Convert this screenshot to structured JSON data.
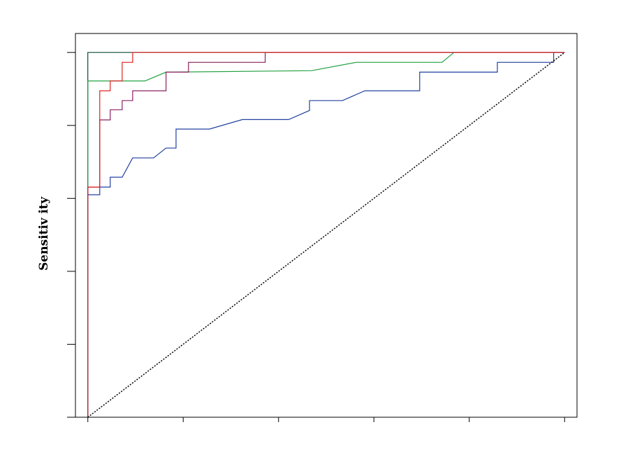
{
  "chart_data": {
    "type": "line",
    "ylabel": "Sensitiv ity",
    "xlim": [
      -0.026,
      1.026
    ],
    "ylim": [
      0,
      1.052
    ],
    "xticks": [
      0,
      0.2,
      0.4,
      0.6,
      0.8,
      1
    ],
    "yticks": [
      0,
      0.2,
      0.4,
      0.6,
      0.8,
      1
    ],
    "series": [
      {
        "color": "#0c4a3a",
        "x": [
          0,
          0,
          1
        ],
        "y": [
          0,
          1,
          1
        ]
      },
      {
        "color": "#22a040",
        "x": [
          0,
          0,
          0.12,
          0.164,
          0.469,
          0.563,
          0.743,
          0.768,
          1
        ],
        "y": [
          0,
          0.922,
          0.922,
          0.946,
          0.95,
          0.973,
          0.973,
          1,
          1
        ]
      },
      {
        "color": "#8a2060",
        "x": [
          0,
          0,
          0.025,
          0.025,
          0.047,
          0.047,
          0.072,
          0.072,
          0.094,
          0.094,
          0.164,
          0.164,
          0.211,
          0.211,
          0.372,
          0.372,
          1
        ],
        "y": [
          0,
          0.631,
          0.631,
          0.815,
          0.815,
          0.843,
          0.843,
          0.868,
          0.868,
          0.895,
          0.895,
          0.946,
          0.946,
          0.973,
          0.973,
          1,
          1
        ]
      },
      {
        "color": "#2040a0",
        "x": [
          0,
          0,
          0.025,
          0.025,
          0.047,
          0.047,
          0.072,
          0.094,
          0.138,
          0.164,
          0.185,
          0.185,
          0.255,
          0.324,
          0.421,
          0.465,
          0.465,
          0.534,
          0.581,
          0.696,
          0.696,
          0.859,
          0.859,
          0.977,
          0.977,
          1
        ],
        "y": [
          0,
          0.61,
          0.61,
          0.631,
          0.631,
          0.658,
          0.658,
          0.711,
          0.711,
          0.738,
          0.738,
          0.79,
          0.79,
          0.816,
          0.816,
          0.841,
          0.868,
          0.868,
          0.895,
          0.895,
          0.946,
          0.946,
          0.973,
          0.973,
          1,
          1
        ]
      },
      {
        "color": "#e02020",
        "x": [
          0,
          0,
          0.025,
          0.025,
          0.047,
          0.047,
          0.072,
          0.072,
          0.094,
          0.094,
          1
        ],
        "y": [
          0,
          0.631,
          0.631,
          0.895,
          0.895,
          0.922,
          0.922,
          0.973,
          0.973,
          1,
          1
        ]
      },
      {
        "color": "#000000",
        "dash": "dotted",
        "x": [
          0,
          1
        ],
        "y": [
          0,
          1
        ]
      }
    ]
  }
}
